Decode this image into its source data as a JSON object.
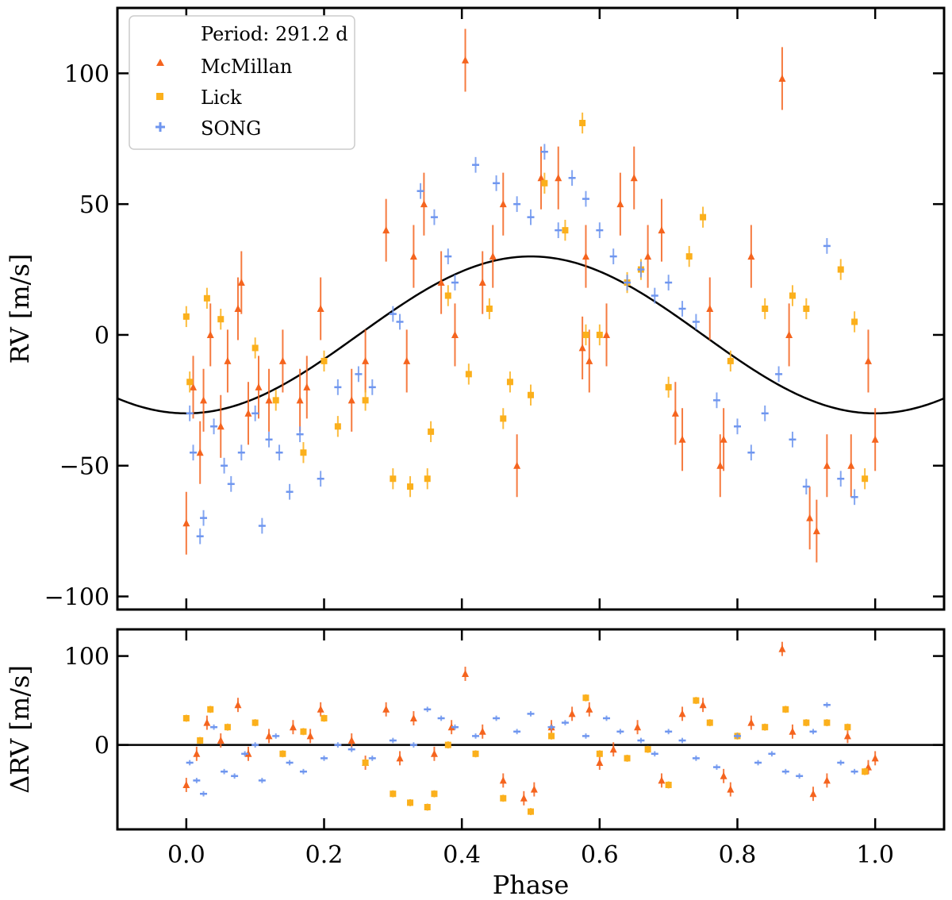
{
  "chart_data": [
    {
      "panel": "main",
      "type": "scatter",
      "title": "",
      "xlabel": "",
      "ylabel": "RV [m/s]",
      "xlim": [
        -0.1,
        1.1
      ],
      "ylim": [
        -105,
        125
      ],
      "xticks": [
        0.0,
        0.2,
        0.4,
        0.6,
        0.8,
        1.0
      ],
      "yticks": [
        -100,
        -50,
        0,
        50,
        100
      ],
      "ytick_labels": [
        "−100",
        "−50",
        "0",
        "50",
        "100"
      ],
      "legend": {
        "placement": "top-left",
        "title": "Period: 291.2 d",
        "entries": [
          "McMillan",
          "Lick",
          "SONG"
        ]
      },
      "model_curve": {
        "type": "sinusoid",
        "amplitude": 30,
        "peak_phase": 0.5,
        "offset": 0
      },
      "series": [
        {
          "name": "McMillan",
          "marker": "triangle",
          "color": "#f5641e",
          "x": [
            0.0,
            0.01,
            0.02,
            0.025,
            0.035,
            0.05,
            0.06,
            0.075,
            0.08,
            0.09,
            0.105,
            0.12,
            0.14,
            0.165,
            0.175,
            0.195,
            0.24,
            0.26,
            0.29,
            0.32,
            0.33,
            0.345,
            0.37,
            0.39,
            0.405,
            0.43,
            0.445,
            0.46,
            0.48,
            0.515,
            0.54,
            0.575,
            0.58,
            0.585,
            0.61,
            0.63,
            0.65,
            0.67,
            0.69,
            0.71,
            0.72,
            0.76,
            0.775,
            0.78,
            0.82,
            0.865,
            0.875,
            0.905,
            0.915,
            0.93,
            0.965,
            0.99,
            1.0
          ],
          "y": [
            -72,
            -20,
            -45,
            -25,
            0,
            -35,
            -10,
            10,
            20,
            -30,
            -20,
            -25,
            -10,
            -25,
            -20,
            10,
            -25,
            -10,
            40,
            -10,
            30,
            50,
            20,
            0,
            105,
            20,
            30,
            50,
            -50,
            60,
            60,
            -5,
            30,
            -10,
            0,
            50,
            60,
            30,
            40,
            -30,
            -40,
            10,
            -50,
            -40,
            30,
            98,
            0,
            -70,
            -75,
            -50,
            -50,
            -10,
            -40
          ],
          "err": [
            12,
            12,
            12,
            12,
            12,
            12,
            12,
            12,
            12,
            12,
            12,
            12,
            12,
            12,
            12,
            12,
            12,
            12,
            12,
            12,
            12,
            12,
            12,
            12,
            12,
            12,
            12,
            12,
            12,
            12,
            12,
            12,
            12,
            12,
            12,
            12,
            12,
            12,
            12,
            12,
            12,
            12,
            12,
            12,
            12,
            12,
            12,
            12,
            12,
            12,
            12,
            12,
            12
          ]
        },
        {
          "name": "Lick",
          "marker": "square",
          "color": "#fbb01c",
          "x": [
            0.0,
            0.005,
            0.03,
            0.05,
            0.1,
            0.13,
            0.17,
            0.2,
            0.22,
            0.26,
            0.3,
            0.325,
            0.35,
            0.355,
            0.38,
            0.41,
            0.44,
            0.46,
            0.47,
            0.5,
            0.52,
            0.55,
            0.575,
            0.58,
            0.6,
            0.64,
            0.66,
            0.7,
            0.73,
            0.75,
            0.79,
            0.84,
            0.88,
            0.9,
            0.95,
            0.97,
            0.985
          ],
          "y": [
            7,
            -18,
            14,
            6,
            -5,
            -25,
            -45,
            -10,
            -35,
            -25,
            -55,
            -58,
            -55,
            -37,
            15,
            -15,
            10,
            -32,
            -18,
            -23,
            58,
            40,
            81,
            0,
            0,
            20,
            25,
            -20,
            30,
            45,
            -10,
            10,
            15,
            10,
            25,
            5,
            -55
          ],
          "err": [
            4,
            4,
            4,
            4,
            4,
            4,
            4,
            4,
            4,
            4,
            4,
            4,
            4,
            4,
            4,
            4,
            4,
            4,
            4,
            4,
            4,
            4,
            4,
            4,
            4,
            4,
            4,
            4,
            4,
            4,
            4,
            4,
            4,
            4,
            4,
            4,
            4
          ]
        },
        {
          "name": "SONG",
          "marker": "cross",
          "color": "#6f96ef",
          "x": [
            0.005,
            0.01,
            0.02,
            0.025,
            0.04,
            0.055,
            0.065,
            0.08,
            0.1,
            0.11,
            0.12,
            0.135,
            0.15,
            0.165,
            0.195,
            0.22,
            0.25,
            0.27,
            0.3,
            0.31,
            0.34,
            0.36,
            0.38,
            0.39,
            0.42,
            0.45,
            0.48,
            0.5,
            0.52,
            0.54,
            0.56,
            0.58,
            0.6,
            0.62,
            0.64,
            0.66,
            0.68,
            0.7,
            0.72,
            0.74,
            0.77,
            0.8,
            0.82,
            0.84,
            0.86,
            0.88,
            0.9,
            0.93,
            0.95,
            0.97
          ],
          "y": [
            -30,
            -45,
            -77,
            -70,
            -35,
            -50,
            -57,
            -45,
            -30,
            -73,
            -40,
            -45,
            -60,
            -38,
            -55,
            -20,
            -15,
            -20,
            8,
            5,
            55,
            45,
            30,
            20,
            65,
            58,
            50,
            45,
            70,
            40,
            60,
            52,
            40,
            30,
            20,
            25,
            15,
            20,
            10,
            5,
            -25,
            -35,
            -45,
            -30,
            -15,
            -40,
            -58,
            34,
            -55,
            -62
          ],
          "err": [
            3,
            3,
            3,
            3,
            3,
            3,
            3,
            3,
            3,
            3,
            3,
            3,
            3,
            3,
            3,
            3,
            3,
            3,
            3,
            3,
            3,
            3,
            3,
            3,
            3,
            3,
            3,
            3,
            3,
            3,
            3,
            3,
            3,
            3,
            3,
            3,
            3,
            3,
            3,
            3,
            3,
            3,
            3,
            3,
            3,
            3,
            3,
            3,
            3,
            3
          ]
        }
      ]
    },
    {
      "panel": "residuals",
      "type": "scatter",
      "title": "",
      "xlabel": "Phase",
      "ylabel": "ΔRV [m/s]",
      "xlim": [
        -0.1,
        1.1
      ],
      "ylim": [
        -95,
        130
      ],
      "xticks": [
        0.0,
        0.2,
        0.4,
        0.6,
        0.8,
        1.0
      ],
      "xtick_labels": [
        "0.0",
        "0.2",
        "0.4",
        "0.6",
        "0.8",
        "1.0"
      ],
      "yticks": [
        0,
        100
      ],
      "ytick_labels": [
        "0",
        "100"
      ],
      "zero_line": 0,
      "series": [
        {
          "name": "McMillan",
          "marker": "triangle",
          "color": "#f5641e",
          "x": [
            0.0,
            0.015,
            0.03,
            0.05,
            0.075,
            0.09,
            0.12,
            0.155,
            0.18,
            0.195,
            0.24,
            0.26,
            0.29,
            0.31,
            0.33,
            0.36,
            0.385,
            0.405,
            0.43,
            0.46,
            0.49,
            0.505,
            0.53,
            0.56,
            0.585,
            0.6,
            0.62,
            0.655,
            0.69,
            0.72,
            0.75,
            0.78,
            0.79,
            0.82,
            0.865,
            0.88,
            0.91,
            0.93,
            0.96,
            0.99,
            1.0
          ],
          "y": [
            -45,
            -10,
            25,
            5,
            45,
            -10,
            10,
            20,
            10,
            40,
            5,
            -20,
            40,
            -15,
            30,
            -10,
            20,
            80,
            15,
            -40,
            -60,
            -50,
            20,
            35,
            40,
            -20,
            -5,
            20,
            -40,
            35,
            45,
            -35,
            -50,
            25,
            108,
            15,
            -55,
            -40,
            10,
            -25,
            -15
          ],
          "err": [
            8,
            8,
            8,
            8,
            8,
            8,
            8,
            8,
            8,
            8,
            8,
            8,
            8,
            8,
            8,
            8,
            8,
            8,
            8,
            8,
            8,
            8,
            8,
            8,
            8,
            8,
            8,
            8,
            8,
            8,
            8,
            8,
            8,
            8,
            8,
            8,
            8,
            8,
            8,
            8,
            8
          ]
        },
        {
          "name": "Lick",
          "marker": "square",
          "color": "#fbb01c",
          "x": [
            0.0,
            0.02,
            0.035,
            0.06,
            0.1,
            0.14,
            0.17,
            0.2,
            0.26,
            0.3,
            0.325,
            0.35,
            0.36,
            0.38,
            0.42,
            0.46,
            0.5,
            0.53,
            0.58,
            0.6,
            0.64,
            0.67,
            0.7,
            0.74,
            0.76,
            0.8,
            0.84,
            0.87,
            0.9,
            0.93,
            0.96,
            0.985
          ],
          "y": [
            30,
            5,
            40,
            20,
            25,
            -10,
            15,
            30,
            -20,
            -55,
            -65,
            -70,
            -55,
            0,
            -10,
            -60,
            -75,
            10,
            53,
            -10,
            -15,
            -5,
            -45,
            50,
            25,
            10,
            20,
            40,
            25,
            25,
            20,
            -30
          ],
          "err": [
            4,
            4,
            4,
            4,
            4,
            4,
            4,
            4,
            4,
            4,
            4,
            4,
            4,
            4,
            4,
            4,
            4,
            4,
            4,
            4,
            4,
            4,
            4,
            4,
            4,
            4,
            4,
            4,
            4,
            4,
            4,
            4
          ]
        },
        {
          "name": "SONG",
          "marker": "cross",
          "color": "#6f96ef",
          "x": [
            0.005,
            0.015,
            0.025,
            0.04,
            0.055,
            0.07,
            0.085,
            0.1,
            0.11,
            0.13,
            0.15,
            0.17,
            0.2,
            0.22,
            0.24,
            0.27,
            0.3,
            0.33,
            0.35,
            0.37,
            0.39,
            0.42,
            0.45,
            0.48,
            0.5,
            0.53,
            0.55,
            0.58,
            0.61,
            0.63,
            0.66,
            0.68,
            0.7,
            0.72,
            0.74,
            0.77,
            0.8,
            0.83,
            0.85,
            0.87,
            0.89,
            0.91,
            0.93,
            0.95,
            0.97
          ],
          "y": [
            -20,
            -40,
            -55,
            20,
            -30,
            -35,
            -10,
            0,
            -40,
            10,
            -20,
            -30,
            -15,
            0,
            -5,
            -15,
            5,
            0,
            40,
            30,
            20,
            10,
            30,
            15,
            35,
            20,
            25,
            10,
            30,
            15,
            5,
            -10,
            15,
            5,
            -15,
            -25,
            10,
            -20,
            -10,
            -30,
            -35,
            15,
            45,
            -20,
            -30
          ],
          "err": [
            3,
            3,
            3,
            3,
            3,
            3,
            3,
            3,
            3,
            3,
            3,
            3,
            3,
            3,
            3,
            3,
            3,
            3,
            3,
            3,
            3,
            3,
            3,
            3,
            3,
            3,
            3,
            3,
            3,
            3,
            3,
            3,
            3,
            3,
            3,
            3,
            3,
            3,
            3,
            3,
            3,
            3,
            3,
            3,
            3
          ]
        }
      ]
    }
  ]
}
